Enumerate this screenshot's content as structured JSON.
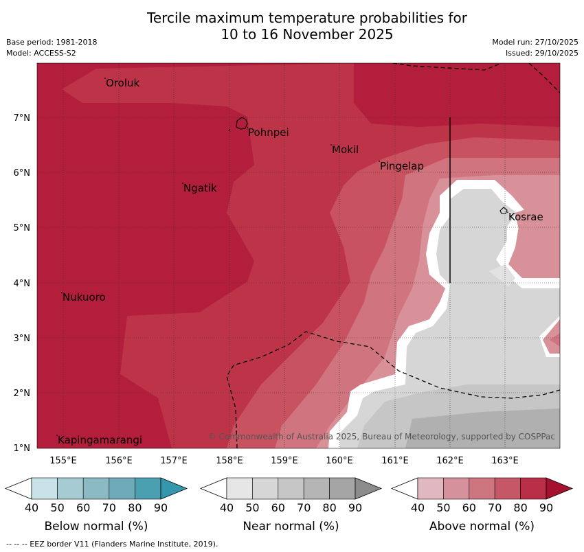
{
  "header": {
    "title_line1": "Tercile maximum temperature probabilities for",
    "title_line2": "10 to 16 November 2025",
    "base_period": "Base period: 1981-2018",
    "model": "Model: ACCESS-S2",
    "model_run": "Model run: 27/10/2025",
    "issued": "Issued: 29/10/2025"
  },
  "map": {
    "lon_ticks": [
      "155°E",
      "156°E",
      "157°E",
      "158°E",
      "159°E",
      "160°E",
      "161°E",
      "162°E",
      "163°E"
    ],
    "lat_ticks": [
      "7°N",
      "6°N",
      "5°N",
      "4°N",
      "3°N",
      "2°N",
      "1°N"
    ],
    "places": [
      {
        "name": "Oroluk"
      },
      {
        "name": "Pohnpei"
      },
      {
        "name": "Mokil"
      },
      {
        "name": "Pingelap"
      },
      {
        "name": "Ngatik"
      },
      {
        "name": "Kosrae"
      },
      {
        "name": "Nukuoro"
      },
      {
        "name": "Kapingamarangi"
      }
    ],
    "copyright": "© Commonwealth of Australia 2025, Bureau of Meteorology, supported by COSPPac"
  },
  "colorbars": [
    {
      "label": "Below normal (%)",
      "ticks": [
        "40",
        "50",
        "60",
        "70",
        "80",
        "90"
      ],
      "colors": [
        "#ffffff",
        "#c9e2e8",
        "#a7cbd2",
        "#8cbac3",
        "#6eaab7",
        "#4a9fb0",
        "#3597ab"
      ]
    },
    {
      "label": "Near normal (%)",
      "ticks": [
        "40",
        "50",
        "60",
        "70",
        "80",
        "90"
      ],
      "colors": [
        "#ffffff",
        "#e6e6e6",
        "#d6d6d6",
        "#c6c6c6",
        "#b5b5b5",
        "#a5a5a5",
        "#8c8c8c"
      ]
    },
    {
      "label": "Above normal (%)",
      "ticks": [
        "40",
        "50",
        "60",
        "70",
        "80",
        "90"
      ],
      "colors": [
        "#ffffff",
        "#e2b8c0",
        "#d6929c",
        "#cd7680",
        "#c55767",
        "#b92f47",
        "#a5122f"
      ]
    }
  ],
  "footnote": "--  --  -- EEZ border V11 (Flanders Marine Institute, 2019)."
}
